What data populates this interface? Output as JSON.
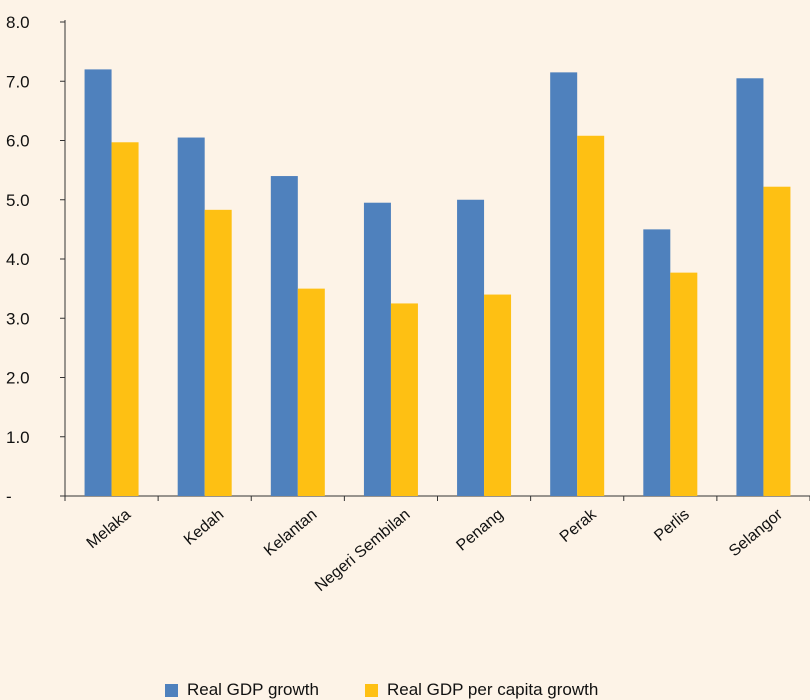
{
  "chart_data": {
    "type": "bar",
    "categories": [
      "Melaka",
      "Kedah",
      "Kelantan",
      "Negeri Sembilan",
      "Penang",
      "Perak",
      "Perlis",
      "Selangor"
    ],
    "series": [
      {
        "name": "Real GDP growth",
        "color": "#4f81bd",
        "values": [
          7.2,
          6.05,
          5.4,
          4.95,
          5.0,
          7.15,
          4.5,
          7.05
        ]
      },
      {
        "name": "Real GDP per capita growth",
        "color": "#fec013",
        "values": [
          5.97,
          4.83,
          3.5,
          3.25,
          3.4,
          6.08,
          3.77,
          5.22
        ]
      }
    ],
    "ylim": [
      0,
      8
    ],
    "ytick_values": [
      0,
      1,
      2,
      3,
      4,
      5,
      6,
      7,
      8
    ],
    "ytick_labels": [
      "-",
      "1.0",
      "2.0",
      "3.0",
      "4.0",
      "5.0",
      "6.0",
      "7.0",
      "8.0"
    ],
    "grid": false,
    "legend": "bottom"
  }
}
